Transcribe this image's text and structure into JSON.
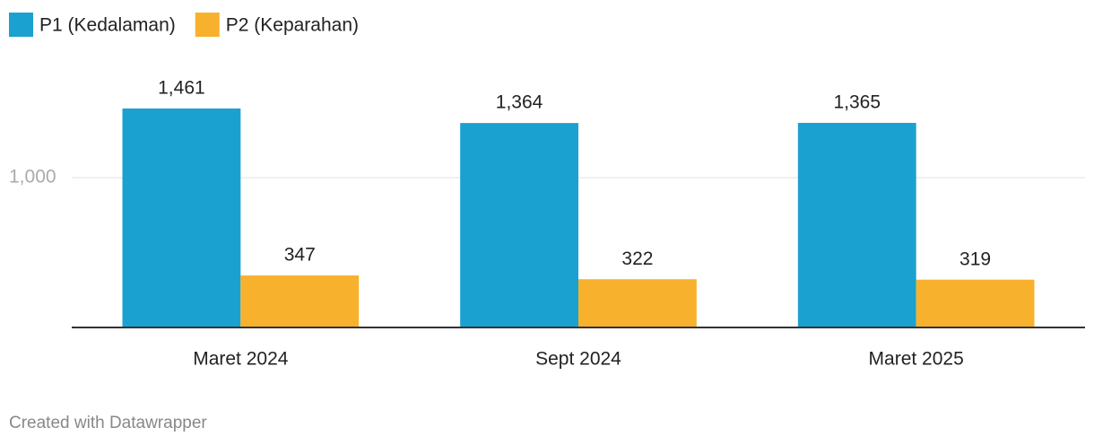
{
  "chart_data": {
    "type": "grouped-bar",
    "categories": [
      "Maret 2024",
      "Sept 2024",
      "Maret 2025"
    ],
    "series": [
      {
        "name": "P1 (Kedalaman)",
        "color": "#1ba1cf",
        "values": [
          1461,
          1364,
          1365
        ],
        "value_labels": [
          "1,461",
          "1,364",
          "1,365"
        ]
      },
      {
        "name": "P2 (Keparahan)",
        "color": "#f8b12c",
        "values": [
          347,
          322,
          319
        ]
      }
    ],
    "ylim": [
      0,
      1700
    ],
    "yticks": [
      {
        "value": 1000,
        "label": "1,000"
      }
    ],
    "grid": true,
    "legend": "top-left",
    "credit": "Created with Datawrapper"
  }
}
